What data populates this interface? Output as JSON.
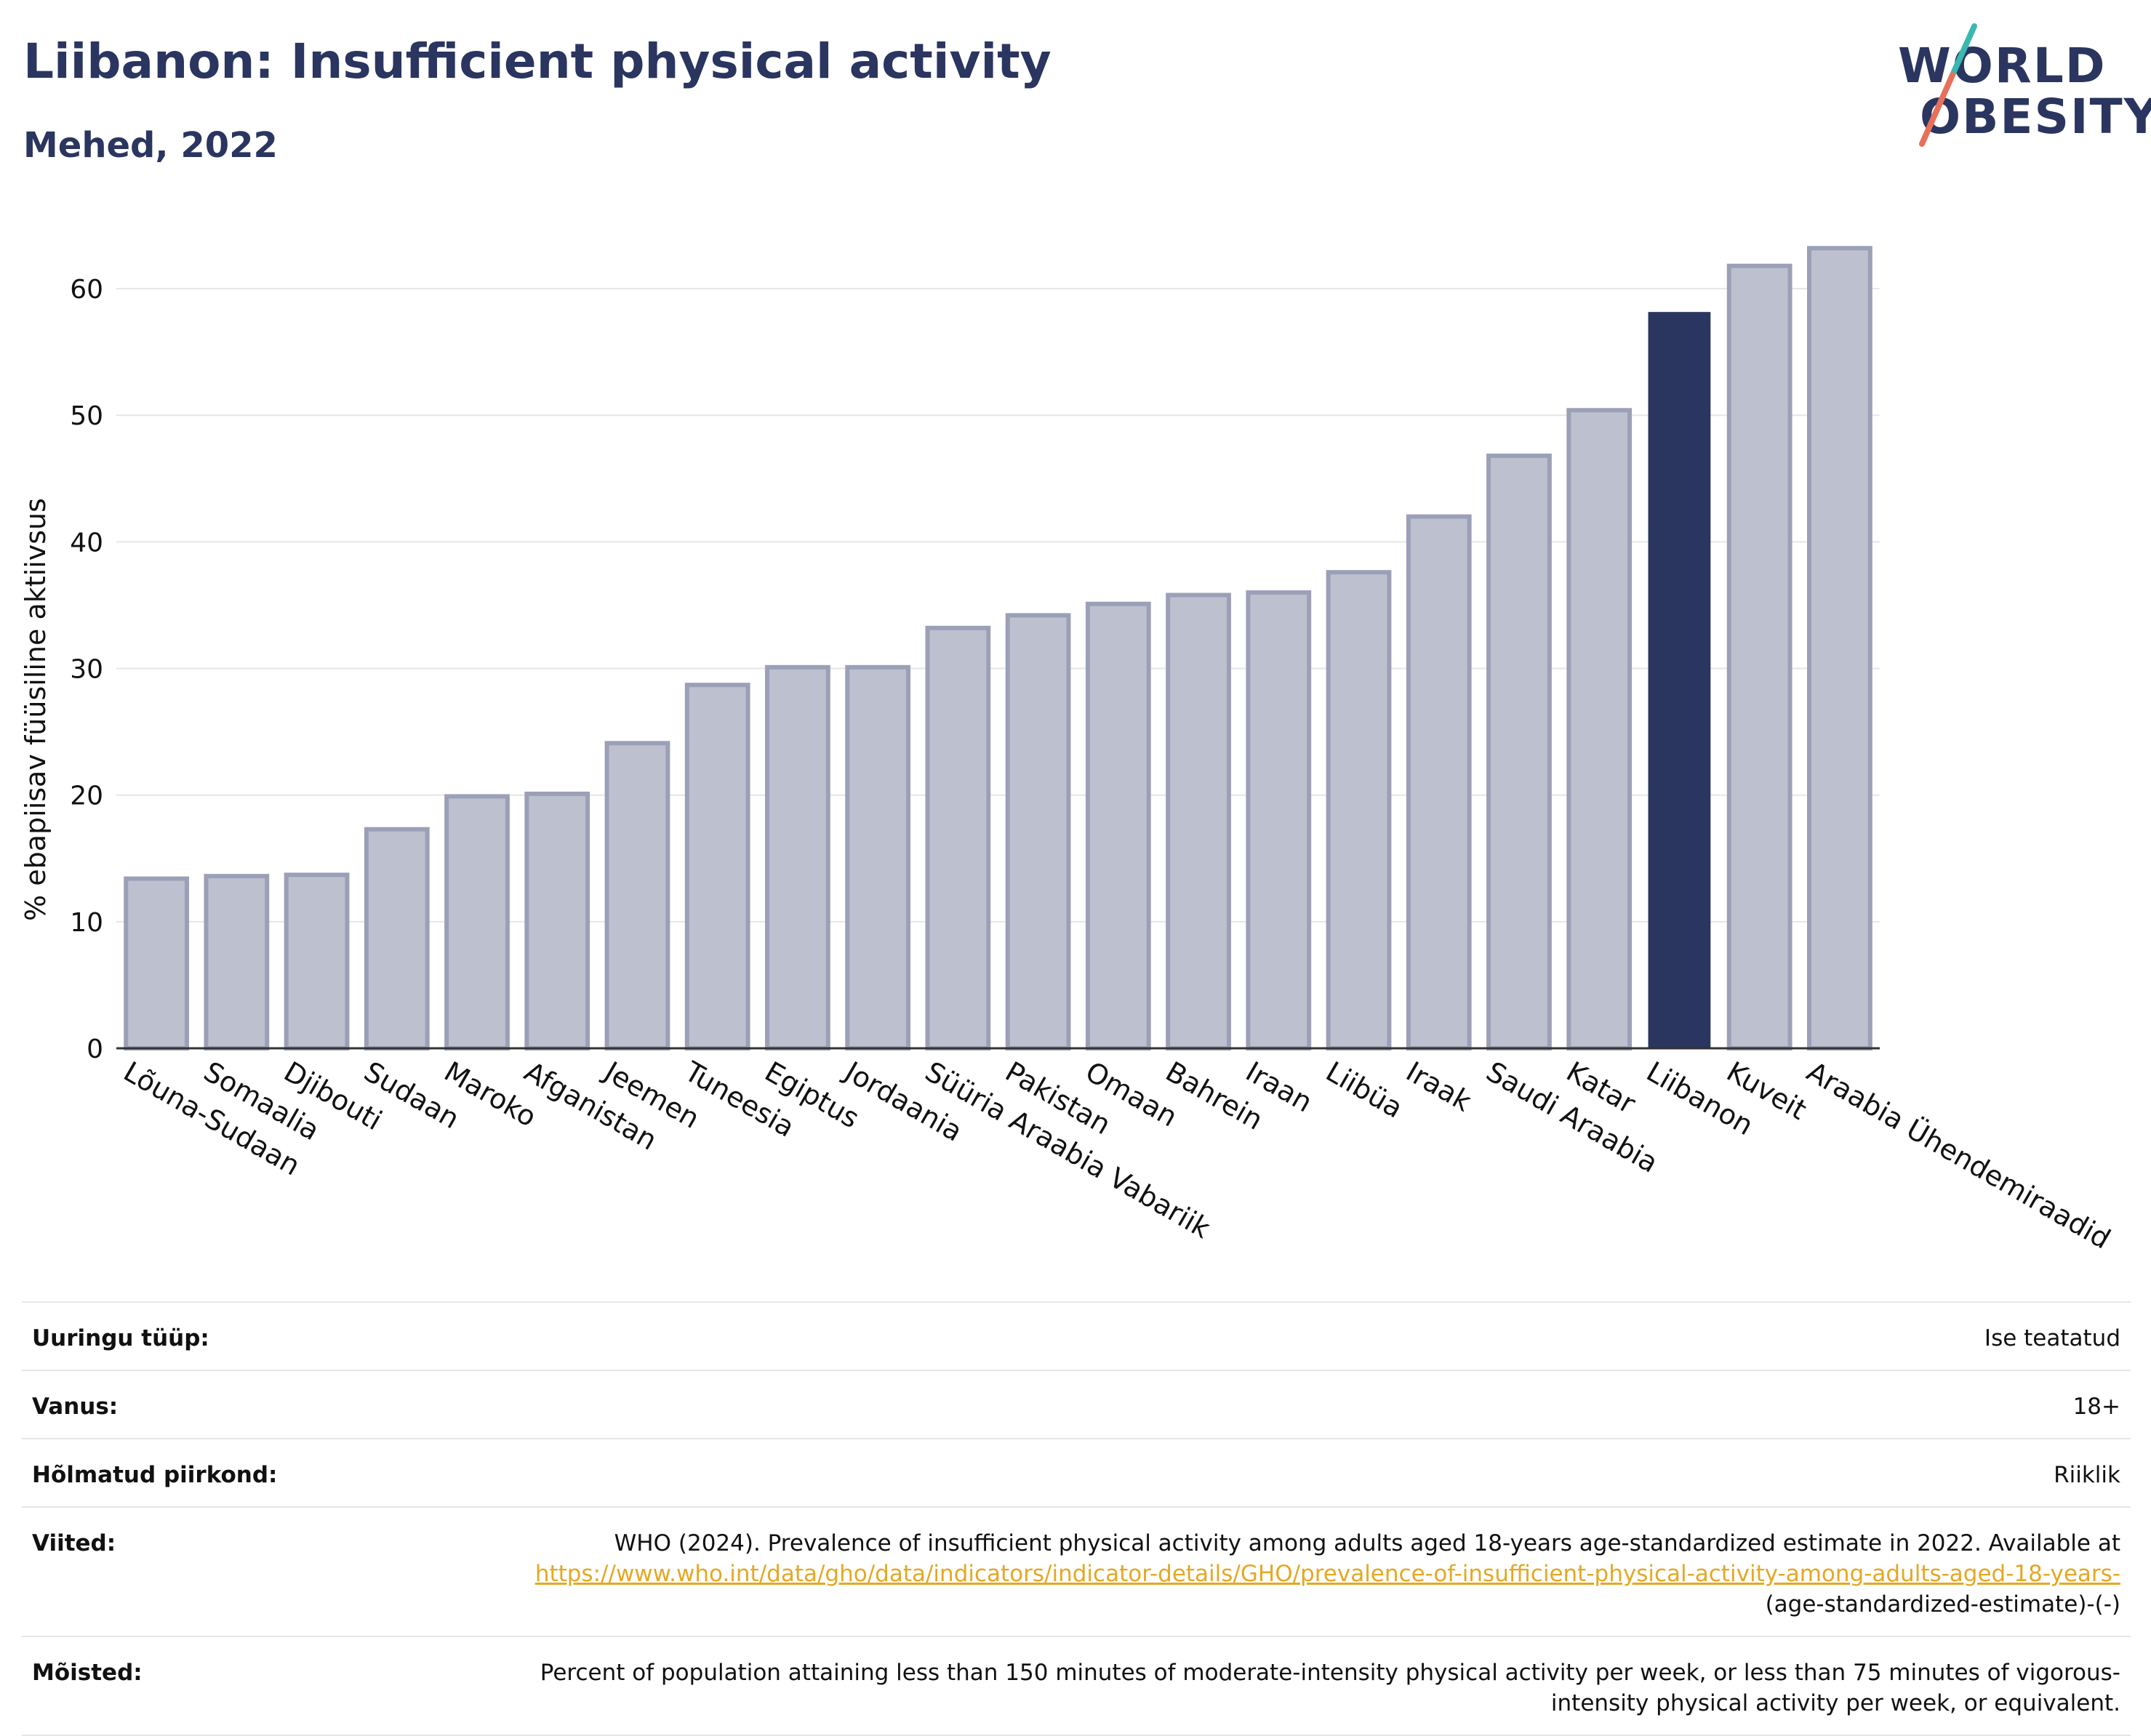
{
  "header": {
    "title": "Liibanon: Insufficient physical activity",
    "subtitle": "Mehed, 2022"
  },
  "logo": {
    "line1": "WORLD",
    "line2": "OBESITY"
  },
  "colors": {
    "bar": "#bdc0ce",
    "bar_border": "#9ba0b7",
    "highlight": "#2a3560",
    "title": "#2a3560",
    "link": "#e5a823"
  },
  "chart_data": {
    "type": "bar",
    "title": "Liibanon: Insufficient physical activity",
    "subtitle": "Mehed, 2022",
    "xlabel": "",
    "ylabel": "% ebapiisav füüsiline aktiivsus",
    "ylim": [
      0,
      65
    ],
    "yticks": [
      0,
      10,
      20,
      30,
      40,
      50,
      60
    ],
    "grid": true,
    "highlight": "Liibanon",
    "categories": [
      "Lõuna-Sudaan",
      "Somaalia",
      "Djibouti",
      "Sudaan",
      "Maroko",
      "Afganistan",
      "Jeemen",
      "Tuneesia",
      "Egiptus",
      "Jordaania",
      "Süüria Araabia Vabariik",
      "Pakistan",
      "Omaan",
      "Bahrein",
      "Iraan",
      "Liibüa",
      "Iraak",
      "Saudi Araabia",
      "Katar",
      "Liibanon",
      "Kuveit",
      "Araabia Ühendemiraadid"
    ],
    "values": [
      13.4,
      13.6,
      13.7,
      17.3,
      19.9,
      20.1,
      24.1,
      28.7,
      30.1,
      30.1,
      33.2,
      34.2,
      35.1,
      35.8,
      36.0,
      37.6,
      42.0,
      46.8,
      50.4,
      58.1,
      61.8,
      63.2
    ]
  },
  "meta": {
    "survey_type_label": "Uuringu tüüp:",
    "survey_type_value": "Ise teatatud",
    "age_label": "Vanus:",
    "age_value": "18+",
    "region_label": "Hõlmatud piirkond:",
    "region_value": "Riiklik",
    "references_label": "Viited:",
    "references_text": "WHO (2024). Prevalence of insufficient physical activity among adults aged 18-years age-standardized estimate in 2022. Available at",
    "references_link": "https://www.who.int/data/gho/data/indicators/indicator-details/GHO/prevalence-of-insufficient-physical-activity-among-adults-aged-18-years-",
    "references_suffix": "(age-standardized-estimate)-(-)",
    "definitions_label": "Mõisted:",
    "definitions_value": "Percent of population attaining less than 150 minutes of moderate-intensity physical activity per week, or less than 75 minutes of vigorous-intensity physical activity per week, or equivalent."
  }
}
